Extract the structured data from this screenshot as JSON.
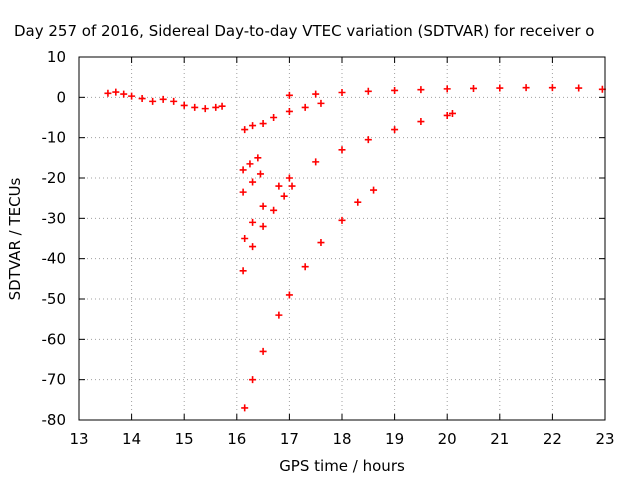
{
  "chart_data": {
    "type": "scatter",
    "title": "Day 257 of 2016, Sidereal Day-to-day VTEC variation (SDTVAR) for receiver o",
    "xlabel": "GPS time / hours",
    "ylabel": "SDTVAR / TECUs",
    "xlim": [
      13,
      23
    ],
    "ylim": [
      -80,
      10
    ],
    "xticks": [
      13,
      14,
      15,
      16,
      17,
      18,
      19,
      20,
      21,
      22,
      23
    ],
    "yticks": [
      10,
      0,
      -10,
      -20,
      -30,
      -40,
      -50,
      -60,
      -70,
      -80
    ],
    "grid": true,
    "marker": "+",
    "color": "#ff0000",
    "series": [
      {
        "x": [
          13.55,
          13.7,
          13.85,
          14.0,
          14.2,
          14.4,
          14.6,
          14.8,
          15.0,
          15.2,
          15.4,
          15.6,
          15.72
        ],
        "y": [
          1.0,
          1.3,
          0.8,
          0.3,
          -0.3,
          -1.0,
          -0.5,
          -1.0,
          -2.0,
          -2.5,
          -2.8,
          -2.5,
          -2.2
        ]
      },
      {
        "x": [
          17.0,
          17.5,
          18.0,
          18.5,
          19.0,
          19.5,
          20.0,
          20.5,
          21.0,
          21.5,
          22.0,
          22.5,
          22.95
        ],
        "y": [
          0.5,
          0.8,
          1.2,
          1.5,
          1.7,
          1.9,
          2.1,
          2.2,
          2.3,
          2.4,
          2.4,
          2.3,
          2.0
        ]
      },
      {
        "x": [
          16.15,
          16.3,
          16.5,
          16.7,
          17.0,
          17.3,
          17.6
        ],
        "y": [
          -8.0,
          -7.0,
          -6.5,
          -5.0,
          -3.5,
          -2.5,
          -1.5
        ]
      },
      {
        "x": [
          16.15,
          16.3,
          16.5,
          16.8,
          17.0,
          17.5,
          18.0,
          18.5,
          19.0,
          19.5,
          20.0,
          20.1
        ],
        "y": [
          -35.0,
          -31.0,
          -27.0,
          -22.0,
          -20.0,
          -16.0,
          -13.0,
          -10.5,
          -8.0,
          -6.0,
          -4.5,
          -4.0
        ]
      },
      {
        "x": [
          16.12,
          16.25,
          16.4
        ],
        "y": [
          -18.0,
          -16.5,
          -15.0
        ]
      },
      {
        "x": [
          16.12,
          16.3,
          16.45
        ],
        "y": [
          -23.5,
          -21.0,
          -19.0
        ]
      },
      {
        "x": [
          16.12,
          16.3,
          16.5,
          16.7,
          16.9,
          17.05
        ],
        "y": [
          -43.0,
          -37.0,
          -32.0,
          -28.0,
          -24.5,
          -22.0
        ]
      },
      {
        "x": [
          16.15,
          16.3,
          16.5,
          16.8,
          17.0,
          17.3,
          17.6,
          18.0,
          18.3,
          18.6
        ],
        "y": [
          -77.0,
          -70.0,
          -63.0,
          -54.0,
          -49.0,
          -42.0,
          -36.0,
          -30.5,
          -26.0,
          -23.0
        ]
      }
    ]
  }
}
